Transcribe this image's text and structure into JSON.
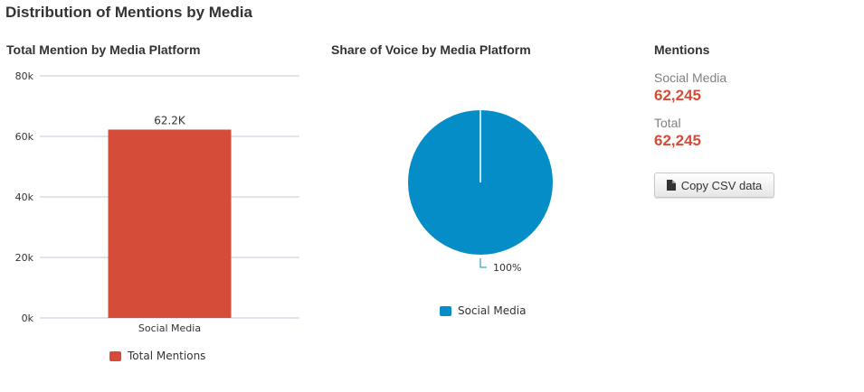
{
  "page_title": "Distribution of Mentions by Media",
  "bar_section": {
    "title": "Total Mention by Media Platform",
    "legend_label": "Total Mentions"
  },
  "pie_section": {
    "title": "Share of Voice by Media Platform",
    "legend_label": "Social Media",
    "slice_label": "100%"
  },
  "mentions_section": {
    "title": "Mentions",
    "stats": [
      {
        "label": "Social Media",
        "value": "62,245"
      },
      {
        "label": "Total",
        "value": "62,245"
      }
    ],
    "csv_button_label": "Copy CSV data",
    "csv_button_icon": "document-icon"
  },
  "colors": {
    "bar": "#d54c38",
    "pie": "#058dc7",
    "stat_value": "#d54c38",
    "grid": "#c0c8d8"
  },
  "chart_data": [
    {
      "type": "bar",
      "title": "Total Mention by Media Platform",
      "categories": [
        "Social Media"
      ],
      "series": [
        {
          "name": "Total Mentions",
          "values": [
            62245
          ]
        }
      ],
      "data_labels": [
        "62.2K"
      ],
      "ylim": [
        0,
        80000
      ],
      "yticks": [
        0,
        20000,
        40000,
        60000,
        80000
      ],
      "ytick_labels": [
        "0k",
        "20k",
        "40k",
        "60k",
        "80k"
      ],
      "grid": true,
      "legend": "bottom"
    },
    {
      "type": "pie",
      "title": "Share of Voice by Media Platform",
      "slices": [
        {
          "label": "Social Media",
          "value": 62245,
          "percent_label": "100%"
        }
      ],
      "legend": "bottom"
    }
  ]
}
